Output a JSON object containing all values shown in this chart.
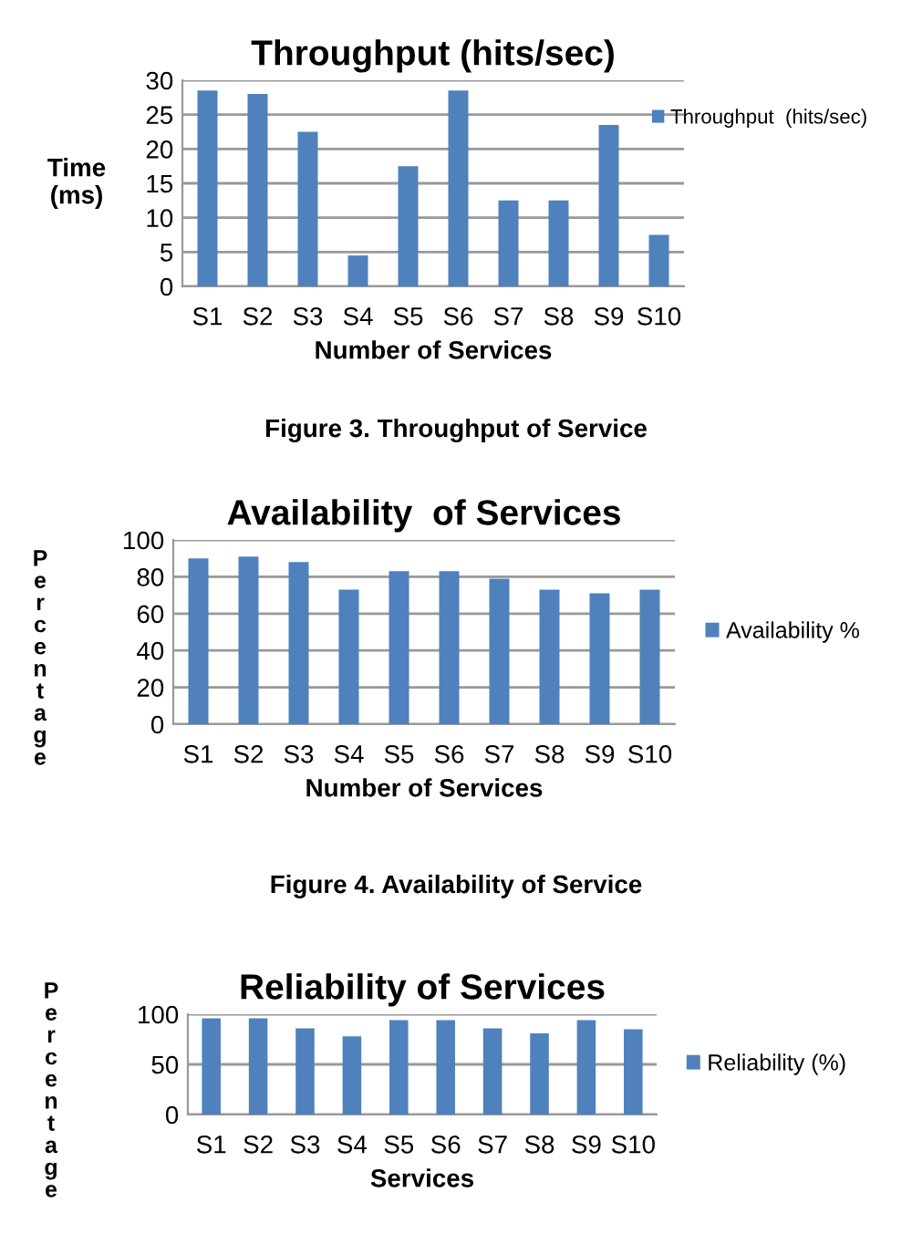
{
  "chart_data": [
    {
      "type": "bar",
      "title": "Throughput (hits/sec)",
      "xlabel": "Number of Services",
      "ylabel": "Time\n(ms)",
      "categories": [
        "S1",
        "S2",
        "S3",
        "S4",
        "S5",
        "S6",
        "S7",
        "S8",
        "S9",
        "S10"
      ],
      "series": [
        {
          "name": "Throughput  (hits/sec)",
          "color": "#4f81bd",
          "values": [
            28.5,
            28,
            22.5,
            4.5,
            17.5,
            28.5,
            12.5,
            12.5,
            23.5,
            7.5
          ]
        }
      ],
      "ylim": [
        0,
        30
      ],
      "yticks": [
        0,
        5,
        10,
        15,
        20,
        25,
        30
      ],
      "grid": "y",
      "legend": "top right",
      "annotations": [
        "Figure 3. Throughput of Service"
      ]
    },
    {
      "type": "bar",
      "title": "Availability  of Services",
      "xlabel": "Number of Services",
      "ylabel": "Percentage",
      "categories": [
        "S1",
        "S2",
        "S3",
        "S4",
        "S5",
        "S6",
        "S7",
        "S8",
        "S9",
        "S10"
      ],
      "series": [
        {
          "name": "Availability %",
          "color": "#4f81bd",
          "values": [
            90,
            91,
            88,
            73,
            83,
            83,
            79,
            73,
            71,
            73
          ]
        }
      ],
      "ylim": [
        0,
        100
      ],
      "yticks": [
        0,
        20,
        40,
        60,
        80,
        100
      ],
      "grid": "y",
      "legend": "right",
      "annotations": [
        "Figure 4. Availability of Service"
      ]
    },
    {
      "type": "bar",
      "title": "Reliability of Services",
      "xlabel": "Services",
      "ylabel": "Percentage",
      "categories": [
        "S1",
        "S2",
        "S3",
        "S4",
        "S5",
        "S6",
        "S7",
        "S8",
        "S9",
        "S10"
      ],
      "series": [
        {
          "name": "Reliability (%)",
          "color": "#4f81bd",
          "values": [
            96,
            96,
            86,
            78,
            94,
            94,
            86,
            81,
            94,
            85
          ]
        }
      ],
      "ylim": [
        0,
        100
      ],
      "yticks": [
        0,
        50,
        100
      ],
      "grid": "y",
      "legend": "right"
    }
  ]
}
